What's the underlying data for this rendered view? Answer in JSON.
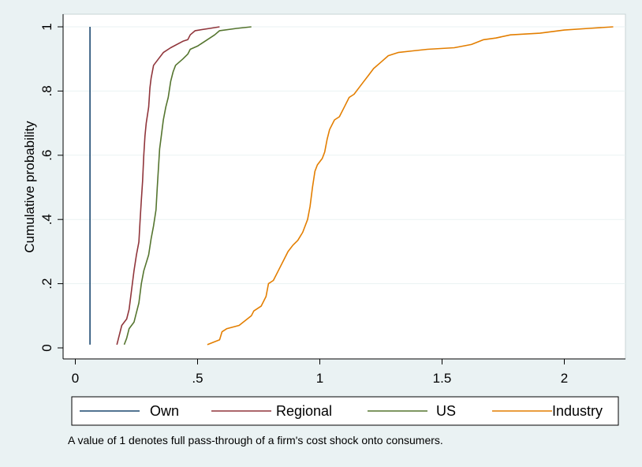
{
  "chart_data": {
    "type": "line",
    "title": "",
    "xlabel": "",
    "ylabel": "Cumulative probability",
    "xlim": [
      -0.05,
      2.25
    ],
    "ylim": [
      0,
      1
    ],
    "x_ticks": [
      0,
      0.5,
      1,
      1.5,
      2
    ],
    "x_tick_labels": [
      "0",
      ".5",
      "1",
      "1.5",
      "2"
    ],
    "y_ticks": [
      0,
      0.2,
      0.4,
      0.6,
      0.8,
      1
    ],
    "y_tick_labels": [
      "0",
      ".2",
      ".4",
      ".6",
      ".8",
      "1"
    ],
    "grid": "horizontal",
    "legend_position": "bottom",
    "note": "A value of 1 denotes full pass-through of a firm's cost shock onto consumers.",
    "series": [
      {
        "name": "Own",
        "color": "#1a476f",
        "points": [
          [
            0.06,
            0.01
          ],
          [
            0.06,
            1.0
          ]
        ]
      },
      {
        "name": "Regional",
        "color": "#90353b",
        "points": [
          [
            0.17,
            0.01
          ],
          [
            0.18,
            0.04
          ],
          [
            0.19,
            0.07
          ],
          [
            0.21,
            0.09
          ],
          [
            0.22,
            0.12
          ],
          [
            0.23,
            0.18
          ],
          [
            0.24,
            0.24
          ],
          [
            0.25,
            0.29
          ],
          [
            0.26,
            0.33
          ],
          [
            0.265,
            0.4
          ],
          [
            0.27,
            0.46
          ],
          [
            0.275,
            0.52
          ],
          [
            0.28,
            0.6
          ],
          [
            0.285,
            0.66
          ],
          [
            0.29,
            0.7
          ],
          [
            0.3,
            0.75
          ],
          [
            0.305,
            0.81
          ],
          [
            0.31,
            0.84
          ],
          [
            0.32,
            0.88
          ],
          [
            0.34,
            0.9
          ],
          [
            0.36,
            0.92
          ],
          [
            0.39,
            0.935
          ],
          [
            0.44,
            0.955
          ],
          [
            0.46,
            0.96
          ],
          [
            0.47,
            0.975
          ],
          [
            0.49,
            0.988
          ],
          [
            0.55,
            0.995
          ],
          [
            0.59,
            1.0
          ]
        ]
      },
      {
        "name": "US",
        "color": "#55752f",
        "points": [
          [
            0.2,
            0.01
          ],
          [
            0.21,
            0.03
          ],
          [
            0.22,
            0.06
          ],
          [
            0.24,
            0.08
          ],
          [
            0.25,
            0.11
          ],
          [
            0.26,
            0.14
          ],
          [
            0.27,
            0.2
          ],
          [
            0.28,
            0.24
          ],
          [
            0.3,
            0.29
          ],
          [
            0.31,
            0.34
          ],
          [
            0.32,
            0.38
          ],
          [
            0.33,
            0.43
          ],
          [
            0.335,
            0.5
          ],
          [
            0.34,
            0.56
          ],
          [
            0.345,
            0.62
          ],
          [
            0.35,
            0.65
          ],
          [
            0.36,
            0.71
          ],
          [
            0.37,
            0.75
          ],
          [
            0.38,
            0.78
          ],
          [
            0.39,
            0.83
          ],
          [
            0.4,
            0.86
          ],
          [
            0.41,
            0.88
          ],
          [
            0.44,
            0.9
          ],
          [
            0.46,
            0.915
          ],
          [
            0.47,
            0.93
          ],
          [
            0.5,
            0.94
          ],
          [
            0.54,
            0.96
          ],
          [
            0.57,
            0.975
          ],
          [
            0.59,
            0.988
          ],
          [
            0.66,
            0.995
          ],
          [
            0.72,
            1.0
          ]
        ]
      },
      {
        "name": "Industry",
        "color": "#e37e00",
        "points": [
          [
            0.54,
            0.01
          ],
          [
            0.59,
            0.025
          ],
          [
            0.6,
            0.05
          ],
          [
            0.62,
            0.06
          ],
          [
            0.67,
            0.07
          ],
          [
            0.72,
            0.1
          ],
          [
            0.73,
            0.115
          ],
          [
            0.76,
            0.13
          ],
          [
            0.78,
            0.16
          ],
          [
            0.79,
            0.2
          ],
          [
            0.81,
            0.21
          ],
          [
            0.83,
            0.24
          ],
          [
            0.85,
            0.27
          ],
          [
            0.87,
            0.3
          ],
          [
            0.89,
            0.32
          ],
          [
            0.91,
            0.335
          ],
          [
            0.93,
            0.36
          ],
          [
            0.95,
            0.4
          ],
          [
            0.96,
            0.44
          ],
          [
            0.97,
            0.5
          ],
          [
            0.98,
            0.55
          ],
          [
            0.99,
            0.57
          ],
          [
            1.01,
            0.59
          ],
          [
            1.02,
            0.61
          ],
          [
            1.03,
            0.65
          ],
          [
            1.04,
            0.68
          ],
          [
            1.06,
            0.71
          ],
          [
            1.08,
            0.72
          ],
          [
            1.1,
            0.75
          ],
          [
            1.12,
            0.78
          ],
          [
            1.14,
            0.79
          ],
          [
            1.16,
            0.81
          ],
          [
            1.18,
            0.83
          ],
          [
            1.2,
            0.85
          ],
          [
            1.22,
            0.87
          ],
          [
            1.25,
            0.89
          ],
          [
            1.28,
            0.91
          ],
          [
            1.32,
            0.92
          ],
          [
            1.38,
            0.925
          ],
          [
            1.44,
            0.93
          ],
          [
            1.55,
            0.935
          ],
          [
            1.62,
            0.945
          ],
          [
            1.67,
            0.96
          ],
          [
            1.72,
            0.965
          ],
          [
            1.78,
            0.975
          ],
          [
            1.9,
            0.98
          ],
          [
            2.0,
            0.99
          ],
          [
            2.1,
            0.995
          ],
          [
            2.2,
            1.0
          ]
        ]
      }
    ]
  }
}
